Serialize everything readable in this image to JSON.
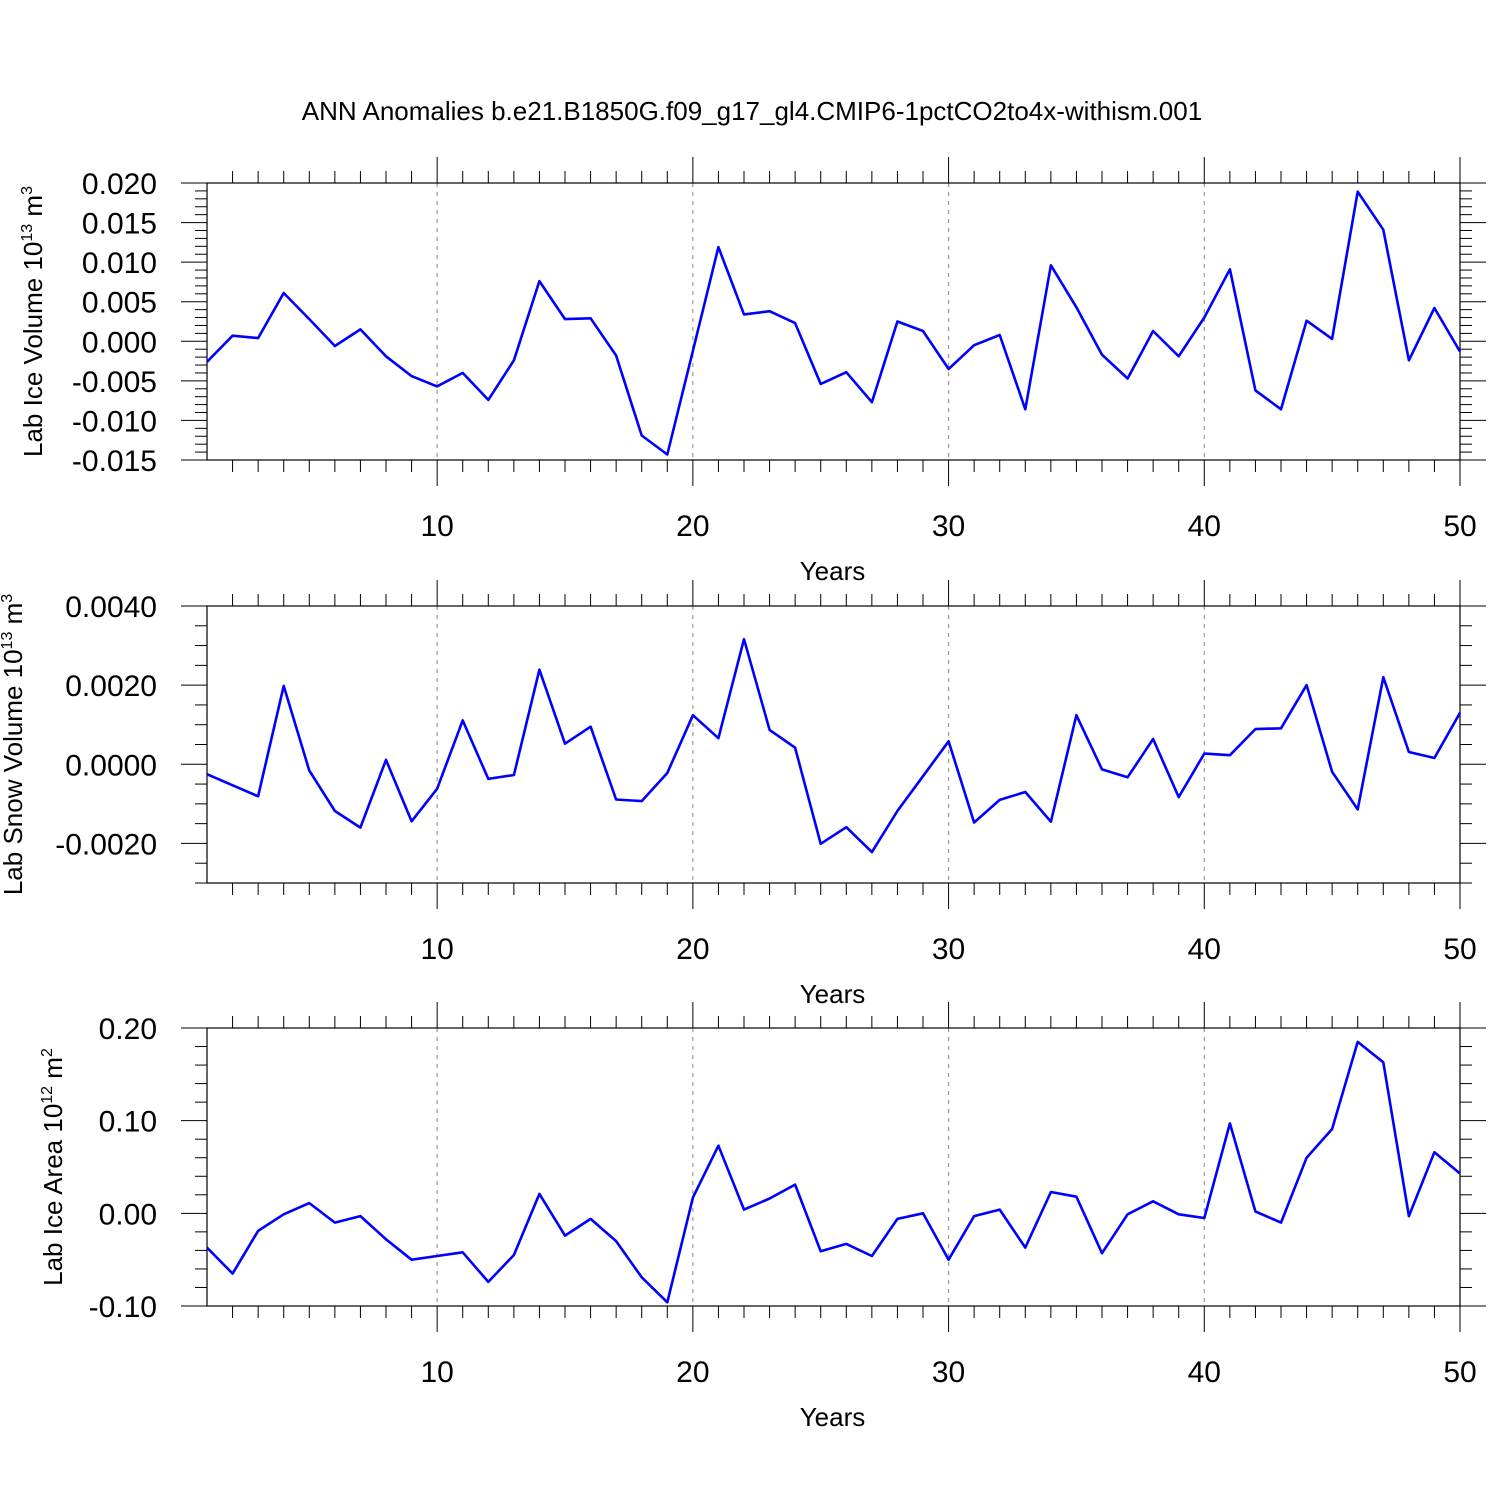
{
  "title": "ANN Anomalies b.e21.B1850G.f09_g17_gl4.CMIP6-1pctCO2to4x-withism.001",
  "colors": {
    "series": "#0000ff",
    "grid": "#9a9a9a",
    "frame": "#000000"
  },
  "chart_data": [
    {
      "type": "line",
      "xlabel": "Years",
      "ylabel": {
        "main": "Lab Ice Volume 10",
        "exp": "13",
        "unit": " m",
        "unit_exp": "3"
      },
      "xlim": [
        1,
        50
      ],
      "ylim": [
        -0.015,
        0.02
      ],
      "x_ticks": [
        10,
        20,
        30,
        40,
        50
      ],
      "x_tick_labels": [
        "10",
        "20",
        "30",
        "40",
        "50"
      ],
      "y_ticks": [
        -0.015,
        -0.01,
        -0.005,
        0.0,
        0.005,
        0.01,
        0.015,
        0.02
      ],
      "y_tick_labels": [
        "-0.015",
        "-0.010",
        "-0.005",
        "0.000",
        "0.005",
        "0.010",
        "0.015",
        "0.020"
      ],
      "y_minor_step": 0.001,
      "grid": "x-dashed",
      "series": [
        {
          "values": [
            -0.0026,
            0.0007,
            0.0004,
            0.0061,
            0.0028,
            -0.0006,
            0.0015,
            -0.0019,
            -0.0044,
            -0.0057,
            -0.004,
            -0.0074,
            -0.0024,
            0.0076,
            0.0028,
            0.0029,
            -0.0018,
            -0.0119,
            -0.0143,
            -0.0012,
            0.0119,
            0.0034,
            0.0038,
            0.0023,
            -0.0054,
            -0.0039,
            -0.0077,
            0.0025,
            0.0013,
            -0.0035,
            -0.0005,
            0.0008,
            -0.0086,
            0.0096,
            0.0043,
            -0.0017,
            -0.0047,
            0.0013,
            -0.0019,
            0.003,
            0.0091,
            -0.0062,
            -0.0086,
            0.0026,
            0.0003,
            0.0189,
            0.0141,
            -0.0024,
            0.0042,
            -0.0013
          ]
        }
      ]
    },
    {
      "type": "line",
      "xlabel": "Years",
      "ylabel": {
        "main": "Lab Snow Volume 10",
        "exp": "13",
        "unit": " m",
        "unit_exp": "3"
      },
      "xlim": [
        1,
        50
      ],
      "ylim": [
        -0.003,
        0.004
      ],
      "x_ticks": [
        10,
        20,
        30,
        40,
        50
      ],
      "x_tick_labels": [
        "10",
        "20",
        "30",
        "40",
        "50"
      ],
      "y_ticks": [
        -0.002,
        0.0,
        0.002,
        0.004
      ],
      "y_tick_labels": [
        "-0.0020",
        "0.0000",
        "0.0020",
        "0.0040"
      ],
      "y_minor_step": 0.0005,
      "grid": "x-dashed",
      "series": [
        {
          "values": [
            -0.00025,
            -0.00053,
            -0.00081,
            0.00198,
            -0.00016,
            -0.00118,
            -0.0016,
            0.00011,
            -0.00144,
            -0.00062,
            0.00111,
            -0.00037,
            -0.00027,
            0.00239,
            0.00052,
            0.00095,
            -0.00089,
            -0.00093,
            -0.00022,
            0.00124,
            0.00066,
            0.00316,
            0.00087,
            0.00042,
            -0.00201,
            -0.00159,
            -0.00222,
            -0.00118,
            -0.0003,
            0.00058,
            -0.00147,
            -0.0009,
            -0.0007,
            -0.00145,
            0.00124,
            -0.00013,
            -0.00033,
            0.00064,
            -0.00083,
            0.00027,
            0.00023,
            0.00089,
            0.00091,
            0.002,
            -0.00019,
            -0.00114,
            0.0022,
            0.00031,
            0.00016,
            0.0013
          ]
        }
      ]
    },
    {
      "type": "line",
      "xlabel": "Years",
      "ylabel": {
        "main": "Lab Ice Area 10",
        "exp": "12",
        "unit": " m",
        "unit_exp": "2"
      },
      "xlim": [
        1,
        50
      ],
      "ylim": [
        -0.1,
        0.2
      ],
      "x_ticks": [
        10,
        20,
        30,
        40,
        50
      ],
      "x_tick_labels": [
        "10",
        "20",
        "30",
        "40",
        "50"
      ],
      "y_ticks": [
        -0.1,
        0.0,
        0.1,
        0.2
      ],
      "y_tick_labels": [
        "-0.10",
        "0.00",
        "0.10",
        "0.20"
      ],
      "y_minor_step": 0.02,
      "grid": "x-dashed",
      "series": [
        {
          "values": [
            -0.037,
            -0.065,
            -0.019,
            -0.001,
            0.011,
            -0.01,
            -0.003,
            -0.028,
            -0.05,
            -0.046,
            -0.042,
            -0.074,
            -0.045,
            0.021,
            -0.024,
            -0.006,
            -0.03,
            -0.069,
            -0.096,
            0.017,
            0.073,
            0.004,
            0.016,
            0.031,
            -0.041,
            -0.033,
            -0.046,
            -0.006,
            0.0,
            -0.05,
            -0.003,
            0.004,
            -0.037,
            0.023,
            0.018,
            -0.043,
            -0.001,
            0.013,
            -0.001,
            -0.005,
            0.097,
            0.002,
            -0.01,
            0.06,
            0.091,
            0.185,
            0.163,
            -0.003,
            0.066,
            0.043
          ]
        }
      ]
    }
  ]
}
